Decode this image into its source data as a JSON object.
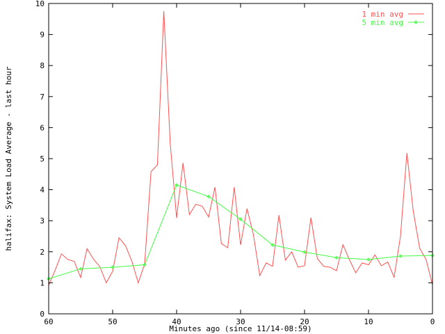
{
  "chart_data": {
    "type": "line",
    "title": "",
    "xlabel": "Minutes ago (since 11/14-08:59)",
    "ylabel": "halifax: System Load Average - last hour",
    "xlim": [
      60,
      0
    ],
    "ylim": [
      0,
      10
    ],
    "x_reversed": true,
    "grid": false,
    "legend_position": "top-right",
    "xticks": [
      60,
      50,
      40,
      30,
      20,
      10,
      0
    ],
    "yticks": [
      0,
      1,
      2,
      3,
      4,
      5,
      6,
      7,
      8,
      9,
      10
    ],
    "series": [
      {
        "name": "1 min avg",
        "color": "#ff4f4f",
        "markers": false,
        "x": [
          60,
          59,
          58,
          57,
          56,
          55,
          54,
          53,
          52,
          51,
          50,
          49,
          48,
          47,
          46,
          45,
          44,
          43,
          42,
          41,
          40,
          39,
          38,
          37,
          36,
          35,
          34,
          33,
          32,
          31,
          30,
          29,
          28,
          27,
          26,
          25,
          24,
          23,
          22,
          21,
          20,
          19,
          18,
          17,
          16,
          15,
          14,
          13,
          12,
          11,
          10,
          9,
          8,
          7,
          6,
          5,
          4,
          3,
          2,
          1,
          0
        ],
        "values": [
          0.92,
          1.4,
          1.93,
          1.75,
          1.69,
          1.17,
          2.1,
          1.76,
          1.52,
          1.0,
          1.37,
          2.45,
          2.2,
          1.7,
          1.0,
          1.6,
          4.58,
          4.8,
          9.75,
          5.5,
          3.09,
          4.86,
          3.2,
          3.53,
          3.47,
          3.12,
          4.08,
          2.26,
          2.13,
          4.08,
          2.22,
          3.39,
          2.56,
          1.23,
          1.64,
          1.53,
          3.18,
          1.73,
          2.0,
          1.5,
          1.55,
          3.1,
          1.78,
          1.53,
          1.5,
          1.39,
          2.23,
          1.75,
          1.32,
          1.64,
          1.58,
          1.9,
          1.55,
          1.67,
          1.18,
          2.5,
          5.18,
          3.3,
          2.11,
          1.75,
          0.94
        ]
      },
      {
        "name": "5 min avg",
        "color": "#40ff40",
        "markers": true,
        "x": [
          60,
          55,
          50,
          45,
          40,
          35,
          30,
          25,
          20,
          15,
          10,
          5,
          0
        ],
        "values": [
          1.13,
          1.45,
          1.5,
          1.58,
          4.15,
          3.78,
          3.05,
          2.22,
          1.99,
          1.81,
          1.75,
          1.86,
          1.88
        ]
      }
    ]
  }
}
